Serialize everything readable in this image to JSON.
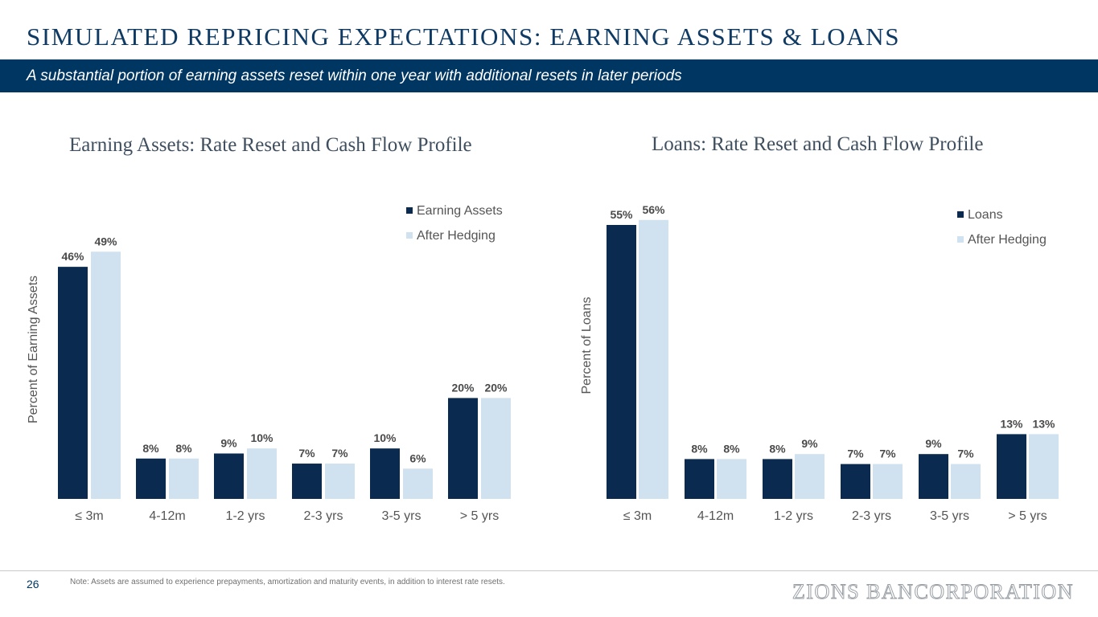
{
  "title": "SIMULATED REPRICING EXPECTATIONS: EARNING ASSETS & LOANS",
  "subtitle": "A substantial portion of earning assets reset within one year with additional resets in later periods",
  "colors": {
    "navy": "#0a2b4f",
    "light": "#d0e1ef",
    "banner": "#003662"
  },
  "chart_data": [
    {
      "type": "bar",
      "title": "Earning Assets: Rate Reset and Cash Flow Profile",
      "ylabel": "Percent of Earning Assets",
      "categories": [
        "≤ 3m",
        "4-12m",
        "1-2 yrs",
        "2-3 yrs",
        "3-5 yrs",
        "> 5 yrs"
      ],
      "series": [
        {
          "name": "Earning Assets",
          "values": [
            46,
            8,
            9,
            7,
            10,
            20
          ],
          "labels": [
            "46%",
            "8%",
            "9%",
            "7%",
            "10%",
            "20%"
          ]
        },
        {
          "name": "After Hedging",
          "values": [
            49,
            8,
            10,
            7,
            6,
            20
          ],
          "labels": [
            "49%",
            "8%",
            "10%",
            "7%",
            "6%",
            "20%"
          ]
        }
      ],
      "legend": "top-right",
      "grid": false
    },
    {
      "type": "bar",
      "title": "Loans: Rate Reset and Cash Flow Profile",
      "ylabel": "Percent of Loans",
      "categories": [
        "≤ 3m",
        "4-12m",
        "1-2 yrs",
        "2-3 yrs",
        "3-5 yrs",
        "> 5 yrs"
      ],
      "series": [
        {
          "name": "Loans",
          "values": [
            55,
            8,
            8,
            7,
            9,
            13
          ],
          "labels": [
            "55%",
            "8%",
            "8%",
            "7%",
            "9%",
            "13%"
          ]
        },
        {
          "name": "After Hedging",
          "values": [
            56,
            8,
            9,
            7,
            7,
            13
          ],
          "labels": [
            "56%",
            "8%",
            "9%",
            "7%",
            "7%",
            "13%"
          ]
        }
      ],
      "legend": "top-right",
      "grid": false
    }
  ],
  "footer": {
    "page": "26",
    "note": "Note: Assets are assumed to experience prepayments, amortization and maturity events, in addition to interest rate resets.",
    "brand": "ZIONS BANCORPORATION"
  }
}
